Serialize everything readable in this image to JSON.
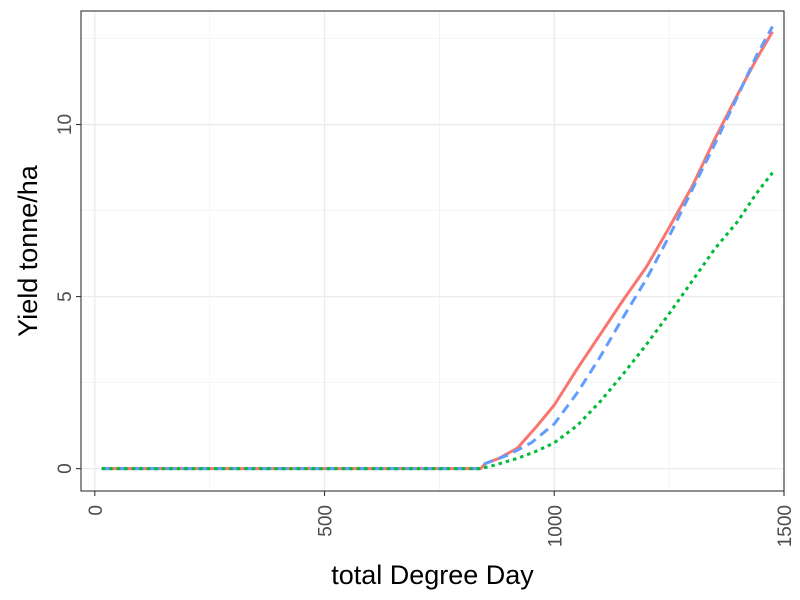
{
  "chart_data": {
    "type": "line",
    "title": "",
    "xlabel": "total Degree Day",
    "ylabel": "Yield tonne/ha",
    "xlim": [
      -30,
      1500
    ],
    "ylim": [
      -0.65,
      13.3
    ],
    "x_ticks": [
      0,
      500,
      1000,
      1500
    ],
    "y_ticks": [
      0,
      5,
      10
    ],
    "grid": true,
    "legend": "none",
    "series": [
      {
        "color": "#F8766D",
        "linestyle": "solid",
        "points": [
          [
            15,
            0
          ],
          [
            840,
            0
          ],
          [
            850,
            0.15
          ],
          [
            880,
            0.3
          ],
          [
            920,
            0.6
          ],
          [
            960,
            1.2
          ],
          [
            1000,
            1.85
          ],
          [
            1050,
            2.9
          ],
          [
            1100,
            3.9
          ],
          [
            1150,
            4.9
          ],
          [
            1200,
            5.85
          ],
          [
            1250,
            7.0
          ],
          [
            1300,
            8.2
          ],
          [
            1350,
            9.6
          ],
          [
            1400,
            10.9
          ],
          [
            1440,
            11.9
          ],
          [
            1475,
            12.7
          ]
        ]
      },
      {
        "color": "#619CFF",
        "linestyle": "dashed",
        "points": [
          [
            15,
            0
          ],
          [
            840,
            0
          ],
          [
            850,
            0.15
          ],
          [
            900,
            0.4
          ],
          [
            950,
            0.75
          ],
          [
            1000,
            1.3
          ],
          [
            1050,
            2.2
          ],
          [
            1100,
            3.25
          ],
          [
            1150,
            4.4
          ],
          [
            1200,
            5.5
          ],
          [
            1250,
            6.75
          ],
          [
            1300,
            8.1
          ],
          [
            1350,
            9.45
          ],
          [
            1400,
            10.85
          ],
          [
            1440,
            12.0
          ],
          [
            1475,
            12.85
          ]
        ]
      },
      {
        "color": "#00BA38",
        "linestyle": "dotted",
        "points": [
          [
            15,
            0
          ],
          [
            840,
            0
          ],
          [
            870,
            0.1
          ],
          [
            920,
            0.3
          ],
          [
            960,
            0.5
          ],
          [
            1000,
            0.75
          ],
          [
            1050,
            1.25
          ],
          [
            1100,
            1.95
          ],
          [
            1150,
            2.75
          ],
          [
            1200,
            3.6
          ],
          [
            1250,
            4.5
          ],
          [
            1300,
            5.45
          ],
          [
            1350,
            6.4
          ],
          [
            1400,
            7.2
          ],
          [
            1440,
            8.0
          ],
          [
            1475,
            8.6
          ]
        ]
      }
    ]
  }
}
